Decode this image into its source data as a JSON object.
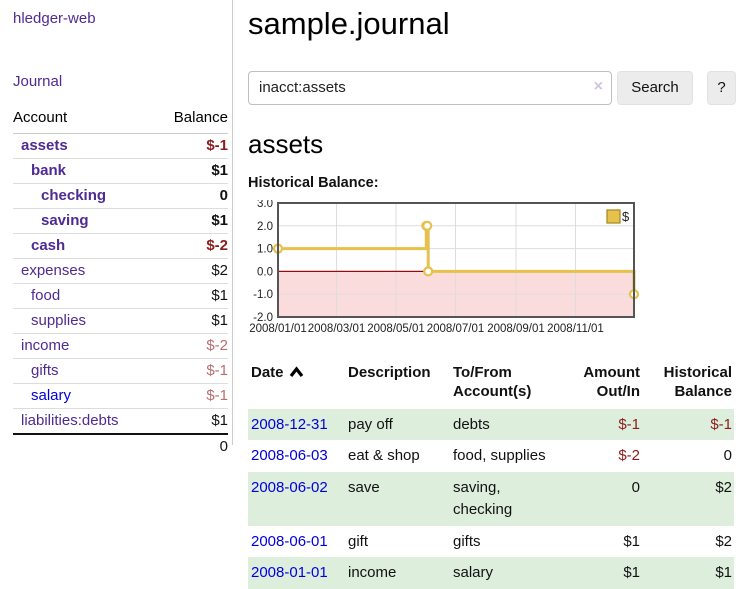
{
  "app": {
    "brand": "hledger-web",
    "nav": {
      "journal": "Journal"
    }
  },
  "sidebar": {
    "accounts_table": {
      "headers": {
        "account": "Account",
        "balance": "Balance"
      },
      "rows": [
        {
          "name": "assets",
          "balance": "$-1",
          "level": 1,
          "bold": true,
          "link_color": "purple",
          "balance_style": "neg-strong"
        },
        {
          "name": "bank",
          "balance": "$1",
          "level": 2,
          "bold": true,
          "link_color": "purple",
          "balance_style": "normal"
        },
        {
          "name": "checking",
          "balance": "0",
          "level": 3,
          "bold": true,
          "link_color": "purple",
          "balance_style": "normal"
        },
        {
          "name": "saving",
          "balance": "$1",
          "level": 3,
          "bold": true,
          "link_color": "purple",
          "balance_style": "normal"
        },
        {
          "name": "cash",
          "balance": "$-2",
          "level": 2,
          "bold": true,
          "link_color": "purple",
          "balance_style": "neg-strong"
        },
        {
          "name": "expenses",
          "balance": "$2",
          "level": 1,
          "bold": false,
          "link_color": "purple",
          "balance_style": "normal"
        },
        {
          "name": "food",
          "balance": "$1",
          "level": 2,
          "bold": false,
          "link_color": "purple",
          "balance_style": "normal"
        },
        {
          "name": "supplies",
          "balance": "$1",
          "level": 2,
          "bold": false,
          "link_color": "purple",
          "balance_style": "normal"
        },
        {
          "name": "income",
          "balance": "$-2",
          "level": 1,
          "bold": false,
          "link_color": "purple",
          "balance_style": "neg-soft"
        },
        {
          "name": "gifts",
          "balance": "$-1",
          "level": 2,
          "bold": false,
          "link_color": "purple",
          "balance_style": "neg-soft"
        },
        {
          "name": "salary",
          "balance": "$-1",
          "level": 2,
          "bold": false,
          "link_color": "blue",
          "balance_style": "neg-soft"
        },
        {
          "name": "liabilities:debts",
          "balance": "$1",
          "level": 1,
          "bold": false,
          "link_color": "purple",
          "balance_style": "normal"
        }
      ],
      "total": "0"
    }
  },
  "main": {
    "title": "sample.journal",
    "search": {
      "value": "inacct:assets",
      "clear_icon": "×",
      "search_button": "Search",
      "help_button": "?"
    },
    "account_heading": "assets",
    "chart_heading": "Historical Balance:"
  },
  "chart_data": {
    "type": "line",
    "title": "Historical Balance:",
    "step": true,
    "x_range": [
      "2008-01-01",
      "2008-12-31"
    ],
    "ylim": [
      -2,
      3
    ],
    "y_ticks": [
      "3.0",
      "2.0",
      "1.0",
      "0.0",
      "-1.0",
      "-2.0"
    ],
    "y_tick_values": [
      3,
      2,
      1,
      0,
      -1,
      -2
    ],
    "x_ticks": [
      {
        "date": "2008-01-01",
        "label": "2008/01/01"
      },
      {
        "date": "2008-03-01",
        "label": "2008/03/01"
      },
      {
        "date": "2008-05-01",
        "label": "2008/05/01"
      },
      {
        "date": "2008-07-01",
        "label": "2008/07/01"
      },
      {
        "date": "2008-09-01",
        "label": "2008/09/01"
      },
      {
        "date": "2008-11-01",
        "label": "2008/11/01"
      }
    ],
    "series": [
      {
        "name": "$",
        "points": [
          {
            "date": "2008-01-01",
            "value": 1
          },
          {
            "date": "2008-06-01",
            "value": 2
          },
          {
            "date": "2008-06-02",
            "value": 2
          },
          {
            "date": "2008-06-03",
            "value": 0
          },
          {
            "date": "2008-12-31",
            "value": -1
          }
        ]
      }
    ],
    "grid": true,
    "legend_position": "top-right",
    "negative_region_shaded": true
  },
  "register": {
    "headers": {
      "date": "Date",
      "description": "Description",
      "accounts": "To/From Account(s)",
      "amount": "Amount Out/In",
      "balance": "Historical Balance"
    },
    "rows": [
      {
        "date": "2008-12-31",
        "description": "pay off",
        "accounts": "debts",
        "amount": "$-1",
        "amount_style": "neg",
        "balance": "$-1",
        "balance_style": "neg",
        "shaded": true
      },
      {
        "date": "2008-06-03",
        "description": "eat & shop",
        "accounts": "food, supplies",
        "amount": "$-2",
        "amount_style": "neg",
        "balance": "0",
        "balance_style": "normal",
        "shaded": false
      },
      {
        "date": "2008-06-02",
        "description": "save",
        "accounts": "saving, checking",
        "amount": "0",
        "amount_style": "normal",
        "balance": "$2",
        "balance_style": "normal",
        "shaded": true
      },
      {
        "date": "2008-06-01",
        "description": "gift",
        "accounts": "gifts",
        "amount": "$1",
        "amount_style": "normal",
        "balance": "$2",
        "balance_style": "normal",
        "shaded": false
      },
      {
        "date": "2008-01-01",
        "description": "income",
        "accounts": "salary",
        "amount": "$1",
        "amount_style": "normal",
        "balance": "$1",
        "balance_style": "normal",
        "shaded": true
      }
    ]
  },
  "colors": {
    "link_purple": "#4f2a93",
    "link_blue": "#0000dd",
    "negative_strong": "#8b1c1c",
    "negative_soft": "#b76e6e",
    "row_shade_green": "#ddeedd",
    "chart_line": "#e6c14c",
    "chart_marker_fill": "#ffffff",
    "chart_negative_fill": "#fbdcdc",
    "chart_zero_line": "#8f0e0e",
    "chart_grid": "#dddddd",
    "chart_border": "#555555",
    "button_bg": "#ececec"
  }
}
